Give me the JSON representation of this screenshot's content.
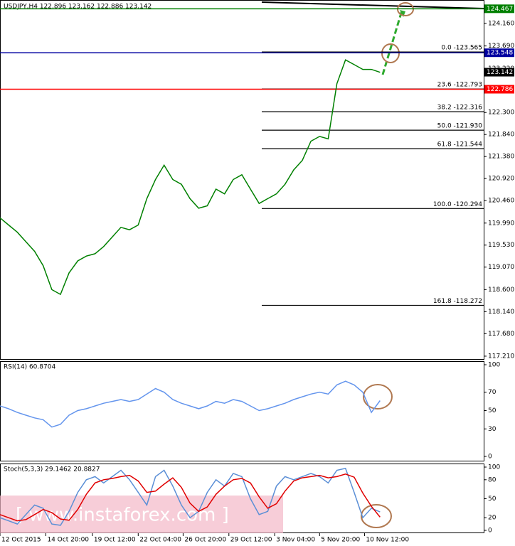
{
  "chart_data": [
    {
      "type": "line",
      "title": "USDJPY,H4  122.896 123.162 122.886 123.142",
      "xlim": [
        0,
        56
      ],
      "xticks": [
        {
          "value": 0,
          "label": "12 Oct 2015"
        },
        {
          "value": 5.3,
          "label": "14 Oct 20:00"
        },
        {
          "value": 10.7,
          "label": "19 Oct 12:00"
        },
        {
          "value": 16,
          "label": "22 Oct 04:00"
        },
        {
          "value": 21.2,
          "label": "26 Oct 20:00"
        },
        {
          "value": 26.5,
          "label": "29 Oct 12:00"
        },
        {
          "value": 31.8,
          "label": "3 Nov 04:00"
        },
        {
          "value": 37,
          "label": "5 Nov 20:00"
        },
        {
          "value": 42.2,
          "label": "10 Nov 12:00"
        }
      ],
      "ylim": [
        117.15,
        124.65
      ],
      "yticks": [
        {
          "value": 124.16,
          "label": "124.160"
        },
        {
          "value": 123.69,
          "label": "123.690"
        },
        {
          "value": 123.22,
          "label": "123.220"
        },
        {
          "value": 122.3,
          "label": "122.300"
        },
        {
          "value": 121.84,
          "label": "121.840"
        },
        {
          "value": 121.38,
          "label": "121.380"
        },
        {
          "value": 120.92,
          "label": "120.920"
        },
        {
          "value": 120.46,
          "label": "120.460"
        },
        {
          "value": 119.99,
          "label": "119.990"
        },
        {
          "value": 119.53,
          "label": "119.530"
        },
        {
          "value": 119.07,
          "label": "119.070"
        },
        {
          "value": 118.6,
          "label": "118.600"
        },
        {
          "value": 118.14,
          "label": "118.140"
        },
        {
          "value": 117.68,
          "label": "117.680"
        },
        {
          "value": 117.21,
          "label": "117.210"
        }
      ],
      "series": [
        {
          "color": "#008000",
          "values": [
            120.1,
            119.95,
            119.8,
            119.6,
            119.4,
            119.1,
            118.6,
            118.5,
            118.95,
            119.2,
            119.3,
            119.35,
            119.5,
            119.7,
            119.9,
            119.85,
            119.95,
            120.5,
            120.9,
            121.2,
            120.9,
            120.8,
            120.5,
            120.3,
            120.35,
            120.7,
            120.6,
            120.9,
            121.0,
            120.7,
            120.4,
            120.5,
            120.6,
            120.8,
            121.1,
            121.3,
            121.7,
            121.8,
            121.75,
            122.9,
            123.4,
            123.3,
            123.2,
            123.2,
            123.14
          ]
        }
      ],
      "levels": [
        {
          "value": 124.467,
          "color": "#008000"
        },
        {
          "value": 123.548,
          "color": "#0000a0"
        },
        {
          "value": 123.142,
          "color": "#000000"
        },
        {
          "value": 122.786,
          "color": "#ff0000"
        }
      ],
      "fibonacci": [
        {
          "value": 123.565,
          "label": "0.0 -123.565"
        },
        {
          "value": 122.793,
          "label": "23.6 -122.793"
        },
        {
          "value": 122.316,
          "label": "38.2 -122.316"
        },
        {
          "value": 121.93,
          "label": "50.0 -121.930"
        },
        {
          "value": 121.544,
          "label": "61.8 -121.544"
        },
        {
          "value": 120.294,
          "label": "100.0 -120.294"
        },
        {
          "value": 118.272,
          "label": "161.8 -118.272"
        }
      ]
    },
    {
      "type": "line",
      "title": "RSI(14) 60.8704",
      "ylim": [
        0,
        100
      ],
      "yticks": [
        100,
        70,
        50,
        30,
        0
      ],
      "series": [
        {
          "color": "#6495ed",
          "values": [
            55,
            52,
            48,
            45,
            42,
            40,
            32,
            35,
            45,
            50,
            52,
            55,
            58,
            60,
            62,
            60,
            62,
            68,
            74,
            70,
            62,
            58,
            55,
            52,
            55,
            60,
            58,
            62,
            60,
            55,
            50,
            52,
            55,
            58,
            62,
            65,
            68,
            70,
            68,
            78,
            82,
            78,
            70,
            48,
            60.8704
          ]
        }
      ]
    },
    {
      "type": "line",
      "title": "Stoch(5,3,3) 29.1462 20.8827",
      "ylim": [
        0,
        100
      ],
      "yticks": [
        100,
        80,
        50,
        20,
        0
      ],
      "series": [
        {
          "color": "#5b8fd6",
          "values": [
            20,
            15,
            10,
            25,
            40,
            35,
            10,
            8,
            30,
            60,
            80,
            85,
            75,
            85,
            95,
            80,
            60,
            40,
            85,
            95,
            70,
            40,
            20,
            30,
            60,
            80,
            70,
            90,
            85,
            50,
            25,
            30,
            70,
            85,
            80,
            85,
            90,
            85,
            75,
            95,
            98,
            60,
            20,
            35,
            29.1462
          ]
        },
        {
          "color": "#e00000",
          "values": [
            25,
            20,
            15,
            17,
            25,
            33,
            28,
            18,
            16,
            33,
            57,
            75,
            80,
            82,
            85,
            87,
            78,
            60,
            62,
            73,
            83,
            68,
            43,
            30,
            37,
            57,
            70,
            80,
            82,
            75,
            53,
            35,
            42,
            62,
            78,
            83,
            85,
            87,
            83,
            85,
            89,
            84,
            59,
            38,
            20.8827
          ]
        }
      ]
    }
  ],
  "watermark": "[ www.instaforex.com ]"
}
